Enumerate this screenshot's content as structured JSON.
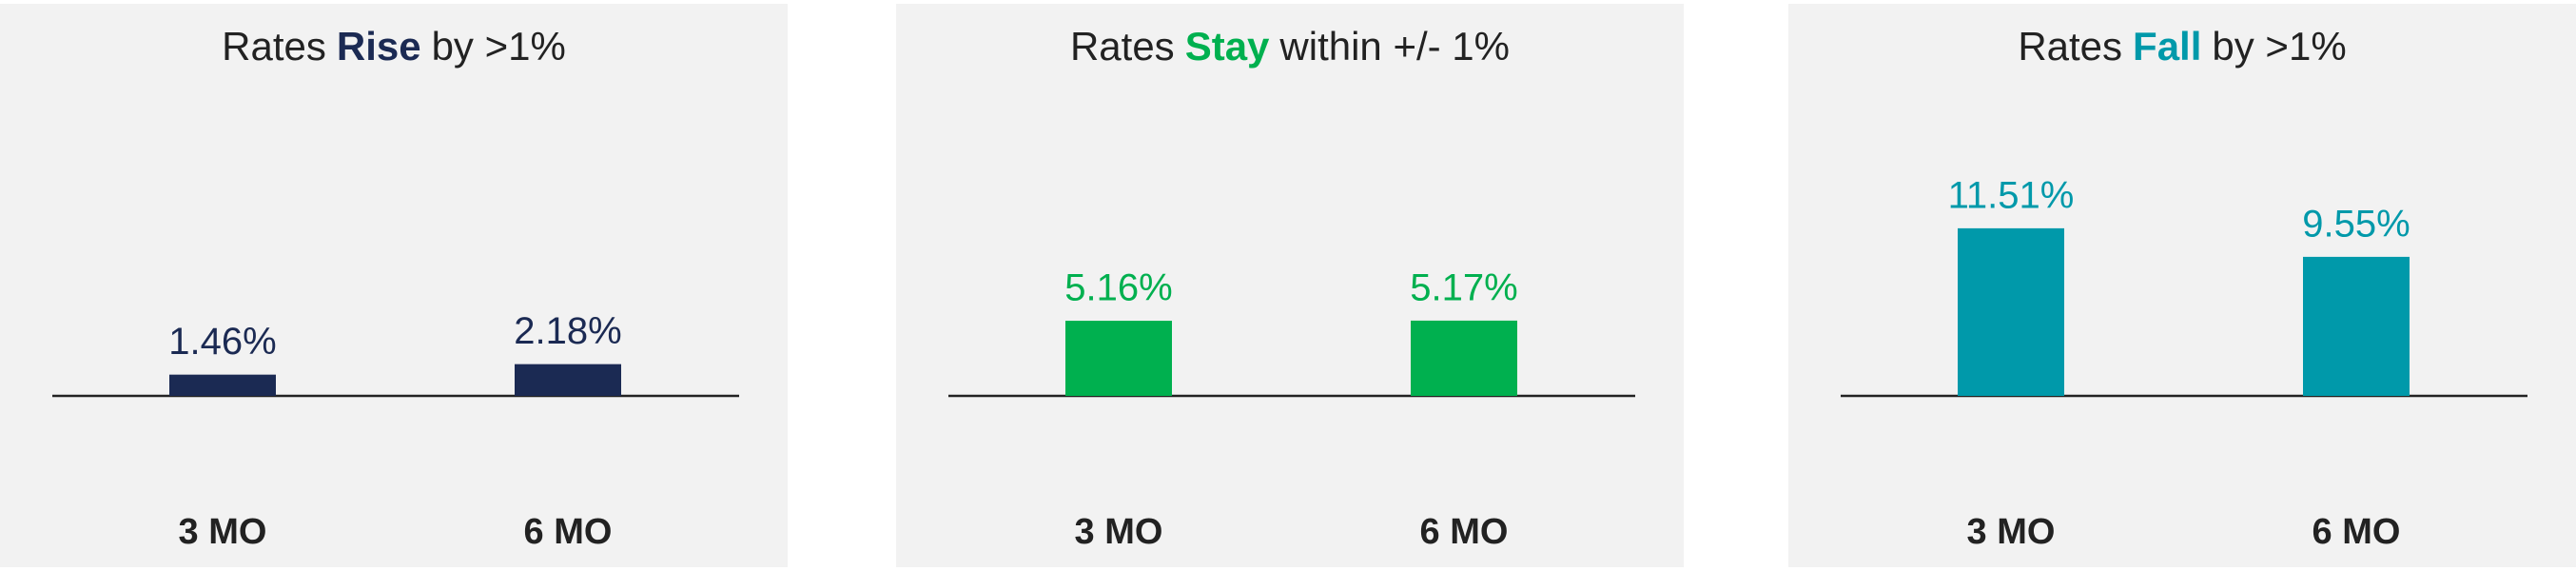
{
  "chart_data": [
    {
      "type": "bar",
      "title_parts": [
        "Rates",
        "Rise",
        "by >1%"
      ],
      "categories": [
        "3 MO",
        "6 MO"
      ],
      "values": [
        1.46,
        2.18
      ],
      "value_labels": [
        "1.46%",
        "2.18%"
      ],
      "color": "#1b2a53"
    },
    {
      "type": "bar",
      "title_parts": [
        "Rates",
        "Stay",
        "within +/- 1%"
      ],
      "categories": [
        "3 MO",
        "6 MO"
      ],
      "values": [
        5.16,
        5.17
      ],
      "value_labels": [
        "5.16%",
        "5.17%"
      ],
      "color": "#00b04f"
    },
    {
      "type": "bar",
      "title_parts": [
        "Rates",
        "Fall",
        "by >1%"
      ],
      "categories": [
        "3 MO",
        "6 MO"
      ],
      "values": [
        11.51,
        9.55
      ],
      "value_labels": [
        "11.51%",
        "9.55%"
      ],
      "color": "#0099aa"
    }
  ]
}
